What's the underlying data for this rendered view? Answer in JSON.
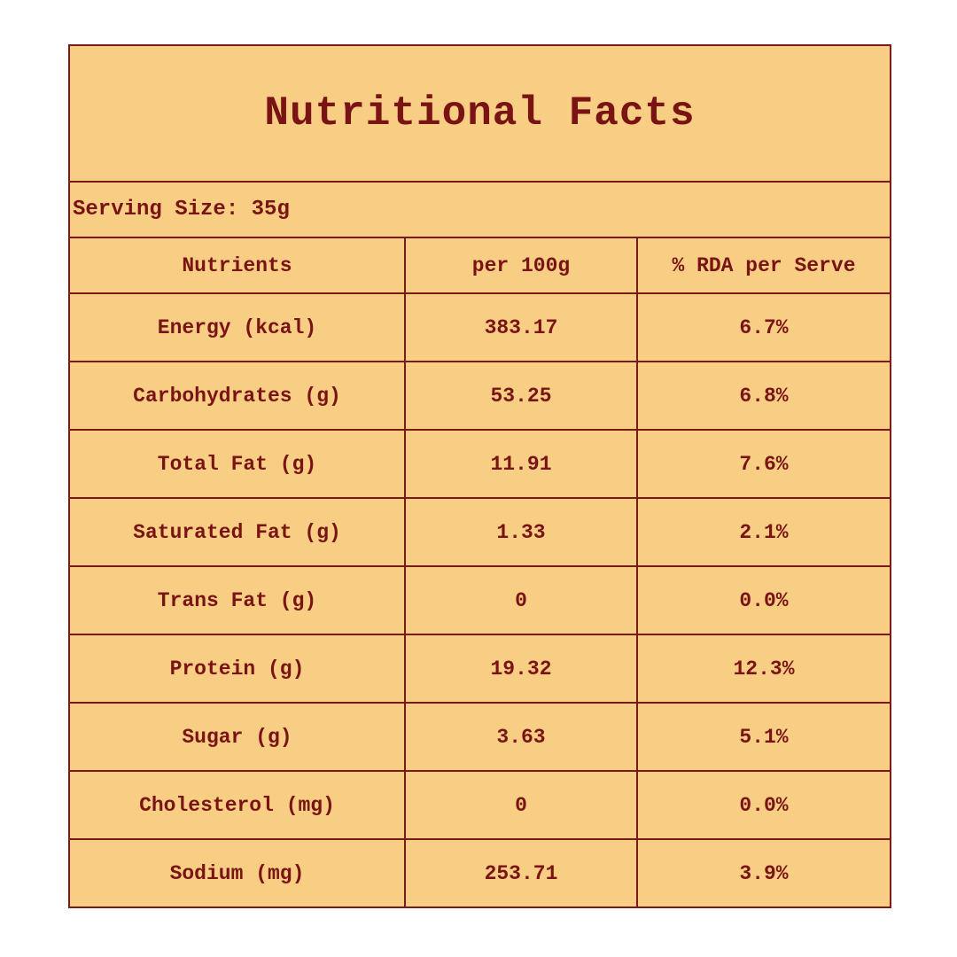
{
  "label": {
    "title": "Nutritional Facts",
    "serving_size": "Serving Size: 35g",
    "columns": [
      "Nutrients",
      "per 100g",
      "% RDA per Serve"
    ],
    "rows": [
      {
        "nutrient": "Energy (kcal)",
        "per100g": "383.17",
        "rda": "6.7%"
      },
      {
        "nutrient": "Carbohydrates (g)",
        "per100g": "53.25",
        "rda": "6.8%"
      },
      {
        "nutrient": "Total Fat (g)",
        "per100g": "11.91",
        "rda": "7.6%"
      },
      {
        "nutrient": "Saturated Fat (g)",
        "per100g": "1.33",
        "rda": "2.1%"
      },
      {
        "nutrient": "Trans Fat (g)",
        "per100g": "0",
        "rda": "0.0%"
      },
      {
        "nutrient": "Protein (g)",
        "per100g": "19.32",
        "rda": "12.3%"
      },
      {
        "nutrient": "Sugar (g)",
        "per100g": "3.63",
        "rda": "5.1%"
      },
      {
        "nutrient": "Cholesterol (mg)",
        "per100g": "0",
        "rda": "0.0%"
      },
      {
        "nutrient": "Sodium (mg)",
        "per100g": "253.71",
        "rda": "3.9%"
      }
    ]
  },
  "colors": {
    "background": "#f8cd84",
    "text": "#7a1414",
    "border": "#7a1a1a"
  }
}
